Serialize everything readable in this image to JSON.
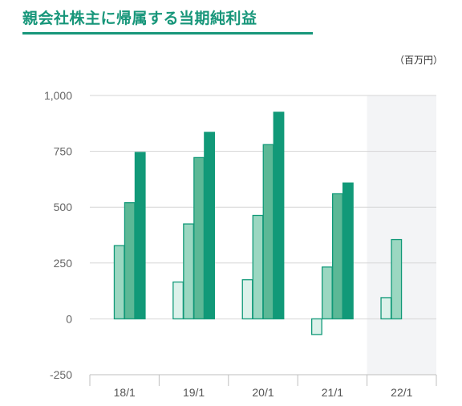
{
  "title": "親会社株主に帰属する当期純利益",
  "unit_label": "（百万円）",
  "colors": {
    "title": "#17967a",
    "q1_fill": "#dcf1ea",
    "q2_fill": "#9bd7c1",
    "q3_fill": "#5cb896",
    "q4_fill": "#119978",
    "stroke": "#119978",
    "highlight_bg": "#f3f4f6",
    "grid": "#d5d5d5"
  },
  "chart_data": {
    "type": "bar",
    "title": "親会社株主に帰属する当期純利益",
    "unit": "（百万円）",
    "categories": [
      "18/1",
      "19/1",
      "20/1",
      "21/1",
      "22/1"
    ],
    "ylim": [
      -250,
      1000
    ],
    "yticks": [
      1000,
      750,
      500,
      250,
      0,
      -250
    ],
    "ytick_labels": [
      "1,000",
      "750",
      "500",
      "250",
      "0",
      "-250"
    ],
    "grid": true,
    "highlighted_category": "22/1",
    "series": [
      {
        "values": [
          null,
          165,
          175,
          -70,
          95
        ]
      },
      {
        "values": [
          328,
          425,
          463,
          232,
          355
        ]
      },
      {
        "values": [
          520,
          722,
          780,
          560,
          null
        ]
      },
      {
        "values": [
          745,
          835,
          925,
          608,
          null
        ]
      }
    ]
  }
}
